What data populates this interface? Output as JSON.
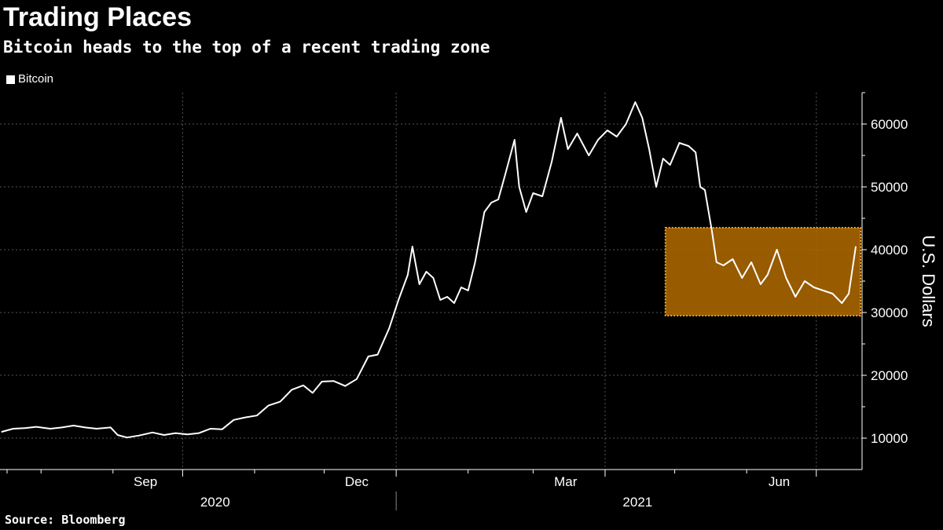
{
  "header": {
    "title": "Trading Places",
    "subtitle": "Bitcoin heads to the top of a recent trading zone"
  },
  "footer": {
    "source": "Source: Bloomberg"
  },
  "colors": {
    "background": "#000000",
    "line": "#ffffff",
    "highlight_fill": "#b36b00",
    "highlight_border": "#f5a623",
    "grid": "#555555"
  },
  "chart_data": {
    "type": "line",
    "title": "Trading Places",
    "subtitle": "Bitcoin heads to the top of a recent trading zone",
    "ylabel": "U.S. Dollars",
    "ylim": [
      5000,
      65000
    ],
    "y_ticks": [
      10000,
      20000,
      30000,
      40000,
      50000,
      60000
    ],
    "y_tick_labels": [
      "10000",
      "20000",
      "30000",
      "40000",
      "50000",
      "60000"
    ],
    "grid": true,
    "legend": "top-left",
    "x_range": [
      "2020-07-15",
      "2021-07-18"
    ],
    "x_tick_labels": [
      {
        "label": "Sep",
        "date": "2020-09-15"
      },
      {
        "label": "Dec",
        "date": "2020-12-15"
      },
      {
        "label": "Mar",
        "date": "2021-03-15"
      },
      {
        "label": "Jun",
        "date": "2021-06-15"
      }
    ],
    "year_labels": [
      {
        "label": "2020",
        "date": "2020-10-15"
      },
      {
        "label": "2021",
        "date": "2021-04-15"
      }
    ],
    "highlight_zone": {
      "x_start": "2021-04-27",
      "x_end": "2021-07-18",
      "y_min": 29500,
      "y_max": 43500
    },
    "series": [
      {
        "name": "Bitcoin",
        "x": [
          "2020-07-15",
          "2020-07-20",
          "2020-07-25",
          "2020-07-30",
          "2020-08-05",
          "2020-08-10",
          "2020-08-15",
          "2020-08-20",
          "2020-08-25",
          "2020-08-31",
          "2020-09-03",
          "2020-09-07",
          "2020-09-12",
          "2020-09-18",
          "2020-09-23",
          "2020-09-28",
          "2020-10-03",
          "2020-10-08",
          "2020-10-13",
          "2020-10-18",
          "2020-10-23",
          "2020-10-28",
          "2020-11-02",
          "2020-11-07",
          "2020-11-12",
          "2020-11-17",
          "2020-11-22",
          "2020-11-26",
          "2020-11-30",
          "2020-12-05",
          "2020-12-10",
          "2020-12-15",
          "2020-12-20",
          "2020-12-24",
          "2020-12-29",
          "2021-01-02",
          "2021-01-06",
          "2021-01-08",
          "2021-01-11",
          "2021-01-14",
          "2021-01-17",
          "2021-01-20",
          "2021-01-23",
          "2021-01-26",
          "2021-01-29",
          "2021-02-01",
          "2021-02-04",
          "2021-02-08",
          "2021-02-11",
          "2021-02-14",
          "2021-02-17",
          "2021-02-21",
          "2021-02-23",
          "2021-02-26",
          "2021-03-01",
          "2021-03-05",
          "2021-03-09",
          "2021-03-13",
          "2021-03-16",
          "2021-03-20",
          "2021-03-25",
          "2021-03-29",
          "2021-04-02",
          "2021-04-06",
          "2021-04-10",
          "2021-04-14",
          "2021-04-17",
          "2021-04-20",
          "2021-04-23",
          "2021-04-26",
          "2021-04-29",
          "2021-05-03",
          "2021-05-07",
          "2021-05-10",
          "2021-05-12",
          "2021-05-14",
          "2021-05-17",
          "2021-05-19",
          "2021-05-22",
          "2021-05-26",
          "2021-05-30",
          "2021-06-03",
          "2021-06-07",
          "2021-06-10",
          "2021-06-14",
          "2021-06-18",
          "2021-06-22",
          "2021-06-26",
          "2021-06-30",
          "2021-07-04",
          "2021-07-08",
          "2021-07-12",
          "2021-07-15",
          "2021-07-18"
        ],
        "values": [
          11000,
          11500,
          11600,
          11800,
          11500,
          11700,
          12000,
          11700,
          11500,
          11700,
          10500,
          10100,
          10400,
          10900,
          10500,
          10800,
          10600,
          10800,
          11500,
          11400,
          12900,
          13300,
          13600,
          15200,
          15800,
          17700,
          18400,
          17200,
          19000,
          19100,
          18300,
          19400,
          23000,
          23300,
          27500,
          32000,
          36000,
          40500,
          34500,
          36500,
          35500,
          32000,
          32500,
          31500,
          34000,
          33500,
          38000,
          46000,
          47500,
          48000,
          52000,
          57500,
          50000,
          46000,
          49000,
          48500,
          54000,
          61000,
          56000,
          58500,
          55000,
          57500,
          59000,
          58000,
          60000,
          63500,
          61000,
          56000,
          50000,
          54500,
          53500,
          57000,
          56500,
          55500,
          50000,
          49500,
          43000,
          38000,
          37500,
          38500,
          35500,
          38000,
          34500,
          36000,
          40000,
          35500,
          32500,
          35000,
          34000,
          33500,
          33000,
          31500,
          33000,
          40500
        ]
      }
    ]
  }
}
